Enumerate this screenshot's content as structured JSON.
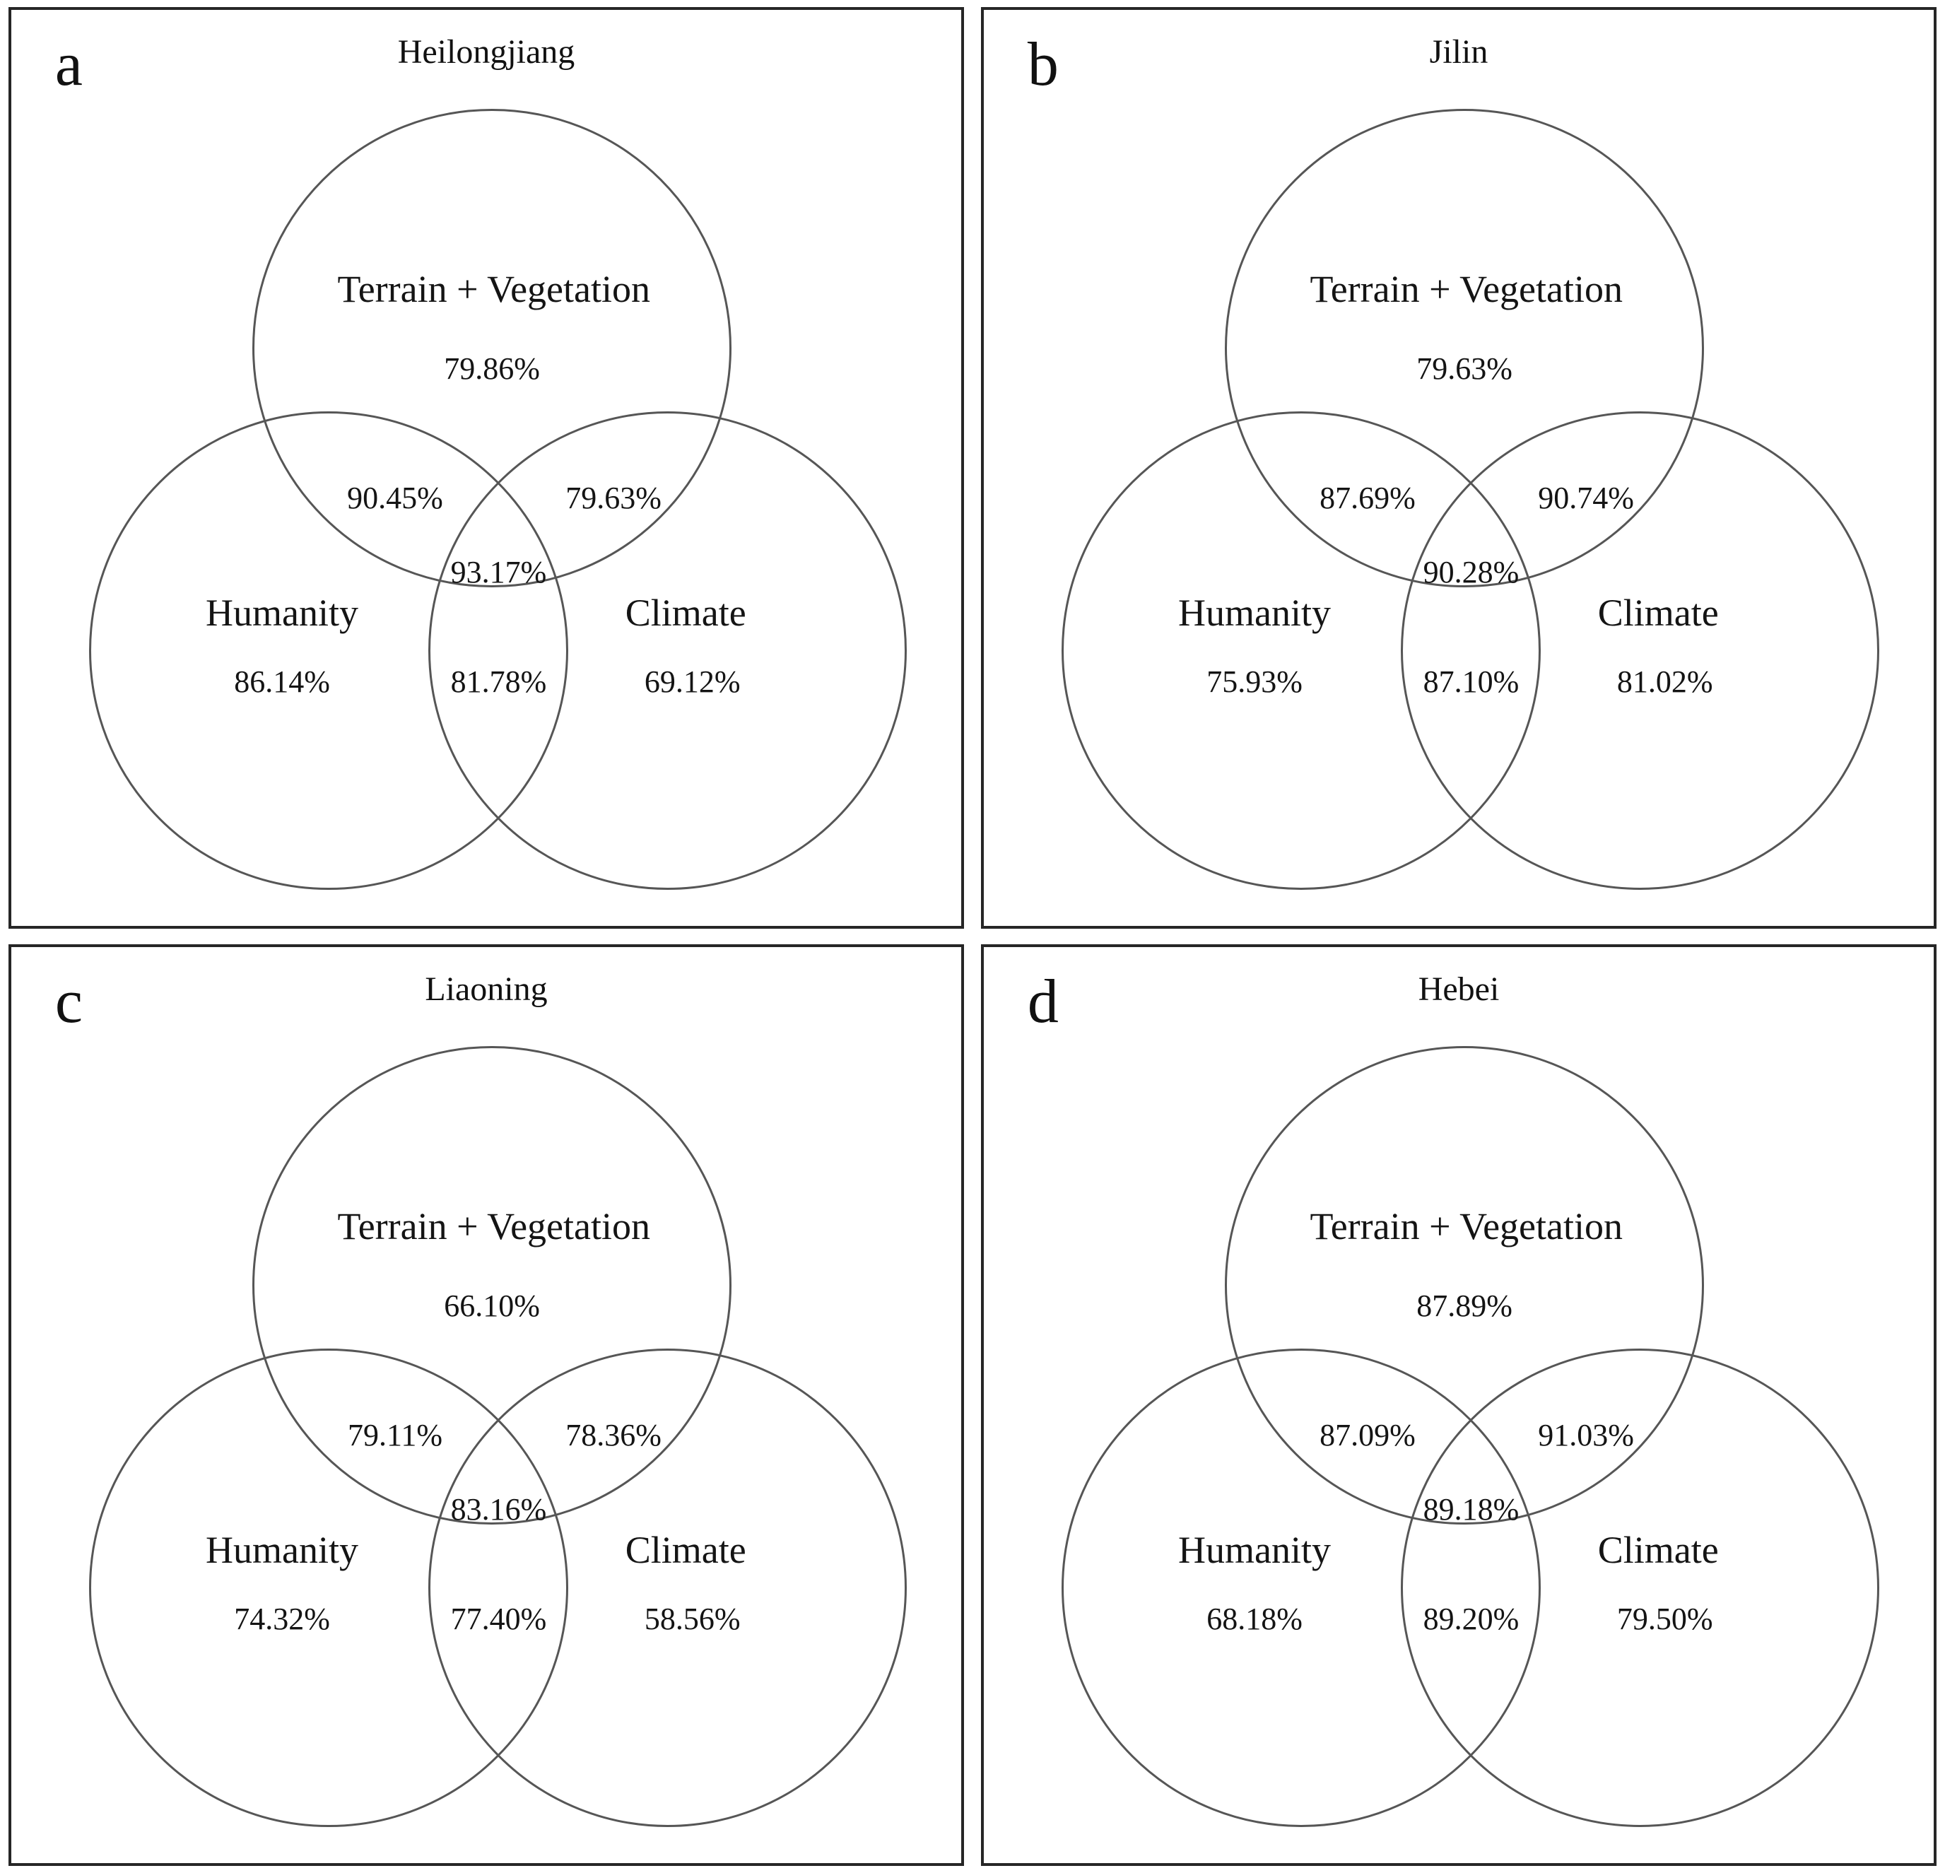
{
  "colors": {
    "background": "#ffffff",
    "panel_border": "#262626",
    "circle_stroke": "#565656",
    "text": "#141414"
  },
  "labels": {
    "top_set": "Terrain + Vegetation",
    "left_set": "Humanity",
    "right_set": "Climate"
  },
  "panels": [
    {
      "letter": "a",
      "title": "Heilongjiang",
      "values": {
        "top": "79.86%",
        "top_left": "90.45%",
        "top_right": "79.63%",
        "center": "93.17%",
        "left": "86.14%",
        "bottom": "81.78%",
        "right": "69.12%"
      }
    },
    {
      "letter": "b",
      "title": "Jilin",
      "values": {
        "top": "79.63%",
        "top_left": "87.69%",
        "top_right": "90.74%",
        "center": "90.28%",
        "left": "75.93%",
        "bottom": "87.10%",
        "right": "81.02%"
      }
    },
    {
      "letter": "c",
      "title": "Liaoning",
      "values": {
        "top": "66.10%",
        "top_left": "79.11%",
        "top_right": "78.36%",
        "center": "83.16%",
        "left": "74.32%",
        "bottom": "77.40%",
        "right": "58.56%"
      }
    },
    {
      "letter": "d",
      "title": "Hebei",
      "values": {
        "top": "87.89%",
        "top_left": "87.09%",
        "top_right": "91.03%",
        "center": "89.18%",
        "left": "68.18%",
        "bottom": "89.20%",
        "right": "79.50%"
      }
    }
  ],
  "chart_data": {
    "type": "venn",
    "sets": [
      "Terrain + Vegetation",
      "Humanity",
      "Climate"
    ],
    "panels": [
      {
        "panel": "a",
        "region": "Heilongjiang",
        "regions": {
          "terrain_vegetation_only": 79.86,
          "humanity_and_terrain_vegetation": 90.45,
          "climate_and_terrain_vegetation": 79.63,
          "all_three": 93.17,
          "humanity_only": 86.14,
          "humanity_and_climate": 81.78,
          "climate_only": 69.12
        }
      },
      {
        "panel": "b",
        "region": "Jilin",
        "regions": {
          "terrain_vegetation_only": 79.63,
          "humanity_and_terrain_vegetation": 87.69,
          "climate_and_terrain_vegetation": 90.74,
          "all_three": 90.28,
          "humanity_only": 75.93,
          "humanity_and_climate": 87.1,
          "climate_only": 81.02
        }
      },
      {
        "panel": "c",
        "region": "Liaoning",
        "regions": {
          "terrain_vegetation_only": 66.1,
          "humanity_and_terrain_vegetation": 79.11,
          "climate_and_terrain_vegetation": 78.36,
          "all_three": 83.16,
          "humanity_only": 74.32,
          "humanity_and_climate": 77.4,
          "climate_only": 58.56
        }
      },
      {
        "panel": "d",
        "region": "Hebei",
        "regions": {
          "terrain_vegetation_only": 87.89,
          "humanity_and_terrain_vegetation": 87.09,
          "climate_and_terrain_vegetation": 91.03,
          "all_three": 89.18,
          "humanity_only": 68.18,
          "humanity_and_climate": 89.2,
          "climate_only": 79.5
        }
      }
    ],
    "unit": "%",
    "legend_position": "none",
    "grid": false
  }
}
